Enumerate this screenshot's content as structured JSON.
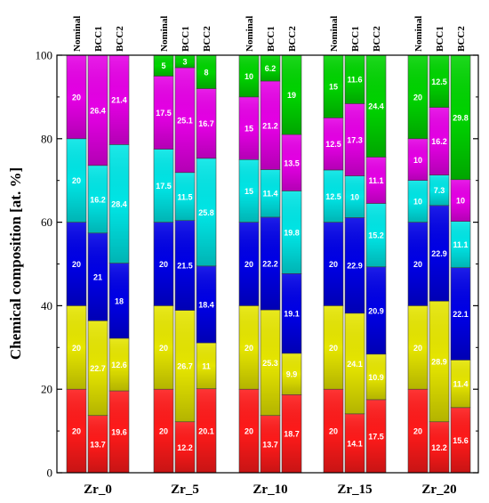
{
  "chart_data": {
    "type": "bar",
    "stacked": true,
    "title": "",
    "xlabel": "",
    "ylabel": "Chemical composition [at. %]",
    "ylim": [
      0,
      100
    ],
    "yticks": [
      "0",
      "20",
      "40",
      "60",
      "80",
      "100"
    ],
    "grid": false,
    "legend": "none",
    "segment_colors": [
      "#ff1a1a",
      "#e6e600",
      "#0000e6",
      "#00e6e6",
      "#e600e6",
      "#00d400"
    ],
    "bar_names": [
      "Nominal",
      "BCC1",
      "BCC2"
    ],
    "groups": [
      {
        "name": "Zr_0",
        "bars": [
          {
            "name": "Nominal",
            "values": [
              20,
              20,
              20,
              20,
              20,
              0
            ],
            "labels": [
              "20",
              "20",
              "20",
              "20",
              "20",
              ""
            ]
          },
          {
            "name": "BCC1",
            "values": [
              13.7,
              22.7,
              21,
              16.2,
              26.4,
              0
            ],
            "labels": [
              "13.7",
              "22.7",
              "21",
              "16.2",
              "26.4",
              ""
            ]
          },
          {
            "name": "BCC2",
            "values": [
              19.6,
              12.6,
              18,
              28.4,
              21.4,
              0
            ],
            "labels": [
              "19.6",
              "12.6",
              "18",
              "28.4",
              "21.4",
              ""
            ]
          }
        ]
      },
      {
        "name": "Zr_5",
        "bars": [
          {
            "name": "Nominal",
            "values": [
              20,
              20,
              20,
              17.5,
              17.5,
              5
            ],
            "labels": [
              "20",
              "20",
              "20",
              "17.5",
              "17.5",
              "5"
            ]
          },
          {
            "name": "BCC1",
            "values": [
              12.2,
              26.7,
              21.5,
              11.5,
              25.1,
              3
            ],
            "labels": [
              "12.2",
              "26.7",
              "21.5",
              "11.5",
              "25.1",
              "3"
            ]
          },
          {
            "name": "BCC2",
            "values": [
              20.1,
              11,
              18.4,
              25.8,
              16.7,
              8
            ],
            "labels": [
              "20.1",
              "11",
              "18.4",
              "25.8",
              "16.7",
              "8"
            ]
          }
        ]
      },
      {
        "name": "Zr_10",
        "bars": [
          {
            "name": "Nominal",
            "values": [
              20,
              20,
              20,
              15,
              15,
              10
            ],
            "labels": [
              "20",
              "20",
              "20",
              "15",
              "15",
              "10"
            ]
          },
          {
            "name": "BCC1",
            "values": [
              13.7,
              25.3,
              22.2,
              11.4,
              21.2,
              6.2
            ],
            "labels": [
              "13.7",
              "25.3",
              "22.2",
              "11.4",
              "21.2",
              "6.2"
            ]
          },
          {
            "name": "BCC2",
            "values": [
              18.7,
              9.9,
              19.1,
              19.8,
              13.5,
              19
            ],
            "labels": [
              "18.7",
              "9.9",
              "19.1",
              "19.8",
              "13.5",
              "19"
            ]
          }
        ]
      },
      {
        "name": "Zr_15",
        "bars": [
          {
            "name": "Nominal",
            "values": [
              20,
              20,
              20,
              12.5,
              12.5,
              15
            ],
            "labels": [
              "20",
              "20",
              "20",
              "12.5",
              "12.5",
              "15"
            ]
          },
          {
            "name": "BCC1",
            "values": [
              14.1,
              24.1,
              22.9,
              10,
              17.3,
              11.6
            ],
            "labels": [
              "14.1",
              "24.1",
              "22.9",
              "10",
              "17.3",
              "11.6"
            ]
          },
          {
            "name": "BCC2",
            "values": [
              17.5,
              10.9,
              20.9,
              15.2,
              11.1,
              24.4
            ],
            "labels": [
              "17.5",
              "10.9",
              "20.9",
              "15.2",
              "11.1",
              "24.4"
            ]
          }
        ]
      },
      {
        "name": "Zr_20",
        "bars": [
          {
            "name": "Nominal",
            "values": [
              20,
              20,
              20,
              10,
              10,
              20
            ],
            "labels": [
              "20",
              "20",
              "20",
              "10",
              "10",
              "20"
            ]
          },
          {
            "name": "BCC1",
            "values": [
              12.2,
              28.9,
              22.9,
              7.3,
              16.2,
              12.5
            ],
            "labels": [
              "12.2",
              "28.9",
              "22.9",
              "7.3",
              "16.2",
              "12.5"
            ]
          },
          {
            "name": "BCC2",
            "values": [
              15.6,
              11.4,
              22.1,
              11.1,
              10,
              29.8
            ],
            "labels": [
              "15.6",
              "11.4",
              "22.1",
              "11.1",
              "10",
              "29.8"
            ]
          }
        ]
      }
    ]
  }
}
